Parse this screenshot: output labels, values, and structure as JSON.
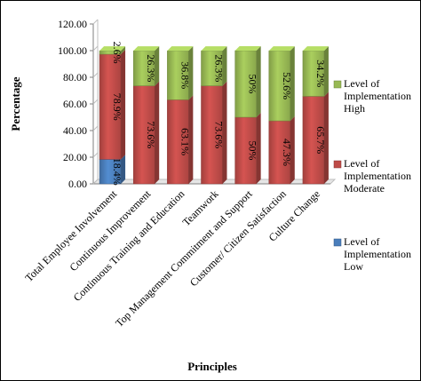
{
  "chart_data": {
    "type": "bar",
    "stacked": true,
    "title": "",
    "xlabel": "Principles",
    "ylabel": "Percentage",
    "ylim": [
      0,
      120
    ],
    "yticks": [
      "0.00",
      "20.00",
      "40.00",
      "60.00",
      "80.00",
      "100.00",
      "120.00"
    ],
    "categories": [
      "Total Employee Involvement",
      "Continuous Improvement",
      "Continuous Training and Education",
      "Teamwork",
      "Top Management Commitment and Support",
      "Customer/ Citizen Satisfaction",
      "Culture Change"
    ],
    "series": [
      {
        "name": "Level of Implementation Low",
        "color": "#4a7ebb",
        "values": [
          18.4,
          0,
          0,
          0,
          0,
          0,
          0
        ],
        "labels": [
          "18.4%",
          "",
          "",
          "",
          "",
          "",
          ""
        ]
      },
      {
        "name": "Level of Implementation Moderate",
        "color": "#be4b48",
        "values": [
          78.9,
          73.6,
          63.1,
          73.6,
          50,
          47.3,
          65.7
        ],
        "labels": [
          "78.9%",
          "73.6%",
          "63.1%",
          "73.6%",
          "50%",
          "47.3%",
          "65.7%"
        ]
      },
      {
        "name": "Level of Implementation High",
        "color": "#98b954",
        "values": [
          2.6,
          26.3,
          36.8,
          26.3,
          50,
          52.6,
          34.2
        ],
        "labels": [
          "2.6%",
          "26.3%",
          "36.8%",
          "26.3%",
          "50%",
          "52.6%",
          "34.2%"
        ]
      }
    ],
    "legend": {
      "position": "right",
      "items": [
        {
          "lines": [
            "Level of",
            "Implementation",
            "High"
          ],
          "color": "#98b954"
        },
        {
          "lines": [
            "Level of",
            "Implementation",
            "Moderate"
          ],
          "color": "#be4b48"
        },
        {
          "lines": [
            "Level of",
            "Implementation",
            "Low"
          ],
          "color": "#4a7ebb"
        }
      ]
    },
    "grid": false
  }
}
